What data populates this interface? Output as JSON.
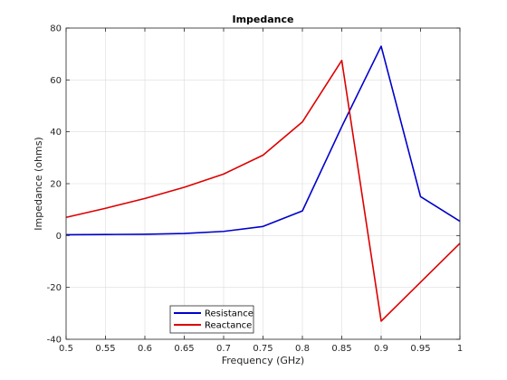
{
  "chart_data": {
    "type": "line",
    "title": "Impedance",
    "xlabel": "Frequency (GHz)",
    "ylabel": "Impedance (ohms)",
    "xlim": [
      0.5,
      1.0
    ],
    "ylim": [
      -40,
      80
    ],
    "x_ticks": [
      "0.5",
      "0.55",
      "0.6",
      "0.65",
      "0.7",
      "0.75",
      "0.8",
      "0.85",
      "0.9",
      "0.95",
      "1"
    ],
    "y_ticks": [
      "-40",
      "-20",
      "0",
      "20",
      "40",
      "60",
      "80"
    ],
    "grid": true,
    "legend_position": "bottom-left",
    "x": [
      0.5,
      0.55,
      0.6,
      0.65,
      0.7,
      0.75,
      0.8,
      0.85,
      0.9,
      0.95,
      1.0
    ],
    "series": [
      {
        "name": "Resistance",
        "color": "#0000cc",
        "values": [
          0.3,
          0.4,
          0.5,
          0.8,
          1.6,
          3.5,
          9.5,
          42,
          73,
          15,
          5.5
        ]
      },
      {
        "name": "Reactance",
        "color": "#dd0000",
        "values": [
          7,
          10.5,
          14.3,
          18.6,
          23.7,
          31,
          43.8,
          67.5,
          -33,
          -18,
          -3
        ]
      }
    ]
  }
}
